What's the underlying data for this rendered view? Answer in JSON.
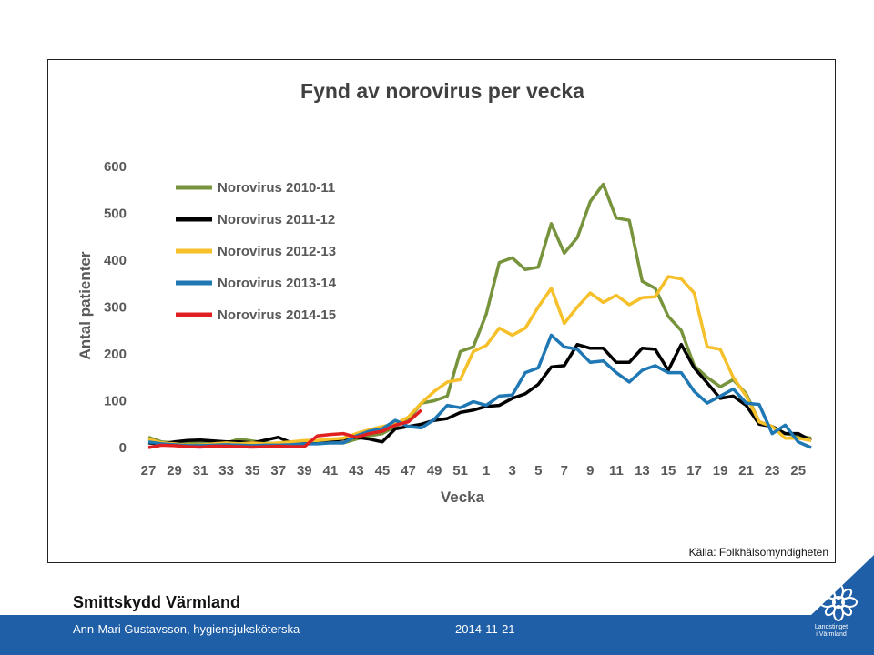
{
  "slide": {
    "org_title": "Smittskydd Värmland",
    "footer_author": "Ann-Mari Gustavsson, hygiensjuksköterska",
    "footer_date": "2014-11-21",
    "source": "Källa: Folkhälsomyndigheten",
    "logo_text_line1": "Landstinget",
    "logo_text_line2": "i Värmland",
    "logo_icon": "flower-logo-icon"
  },
  "colors": {
    "footer_bar": "#1f5fa7",
    "logo_triangle": "#1f5fa7"
  },
  "chart_data": {
    "type": "line",
    "title": "Fynd av norovirus per vecka",
    "xlabel": "Vecka",
    "ylabel": "Antal patienter",
    "ylim": [
      0,
      600
    ],
    "yticks": [
      0,
      100,
      200,
      300,
      400,
      500,
      600
    ],
    "grid": false,
    "legend_position": "top-left",
    "x_tick_labels": [
      "27",
      "29",
      "31",
      "33",
      "35",
      "37",
      "39",
      "41",
      "43",
      "45",
      "47",
      "49",
      "51",
      "1",
      "3",
      "5",
      "7",
      "9",
      "11",
      "13",
      "15",
      "17",
      "19",
      "21",
      "23",
      "25"
    ],
    "x": [
      "27",
      "28",
      "29",
      "30",
      "31",
      "32",
      "33",
      "34",
      "35",
      "36",
      "37",
      "38",
      "39",
      "40",
      "41",
      "42",
      "43",
      "44",
      "45",
      "46",
      "47",
      "48",
      "49",
      "50",
      "51",
      "52",
      "1",
      "2",
      "3",
      "4",
      "5",
      "6",
      "7",
      "8",
      "9",
      "10",
      "11",
      "12",
      "13",
      "14",
      "15",
      "16",
      "17",
      "18",
      "19",
      "20",
      "21",
      "22",
      "23",
      "24",
      "25",
      "26"
    ],
    "series": [
      {
        "name": "Norovirus 2010-11",
        "color": "#77933c",
        "values": [
          22,
          12,
          10,
          8,
          12,
          12,
          10,
          18,
          14,
          10,
          8,
          10,
          12,
          12,
          10,
          10,
          18,
          25,
          30,
          45,
          60,
          95,
          100,
          110,
          205,
          215,
          285,
          395,
          405,
          380,
          385,
          478,
          415,
          448,
          525,
          562,
          490,
          485,
          355,
          340,
          280,
          250,
          175,
          150,
          130,
          145,
          115,
          55,
          45,
          30,
          25,
          20
        ]
      },
      {
        "name": "Norovirus 2011-12",
        "color": "#000000",
        "values": [
          10,
          8,
          12,
          15,
          16,
          14,
          12,
          12,
          10,
          16,
          22,
          10,
          12,
          12,
          15,
          18,
          22,
          18,
          12,
          40,
          45,
          50,
          58,
          62,
          75,
          80,
          88,
          90,
          105,
          115,
          135,
          172,
          175,
          220,
          212,
          212,
          182,
          182,
          212,
          210,
          165,
          220,
          170,
          138,
          105,
          110,
          90,
          50,
          45,
          30,
          30,
          15
        ]
      },
      {
        "name": "Norovirus 2012-13",
        "color": "#f5c02a",
        "values": [
          18,
          10,
          8,
          5,
          5,
          8,
          10,
          8,
          10,
          8,
          10,
          12,
          15,
          15,
          18,
          20,
          30,
          38,
          45,
          50,
          65,
          95,
          120,
          140,
          145,
          205,
          218,
          255,
          240,
          255,
          300,
          340,
          265,
          300,
          330,
          310,
          325,
          305,
          320,
          322,
          365,
          360,
          330,
          215,
          210,
          150,
          110,
          55,
          45,
          20,
          20,
          15
        ]
      },
      {
        "name": "Norovirus 2013-14",
        "color": "#1f77b4",
        "values": [
          12,
          8,
          6,
          4,
          4,
          5,
          6,
          5,
          4,
          5,
          5,
          6,
          8,
          8,
          10,
          10,
          25,
          35,
          40,
          58,
          45,
          42,
          60,
          90,
          85,
          98,
          90,
          110,
          112,
          160,
          170,
          240,
          215,
          210,
          182,
          185,
          160,
          140,
          165,
          175,
          160,
          160,
          120,
          95,
          110,
          125,
          95,
          92,
          30,
          48,
          12,
          0
        ]
      },
      {
        "name": "Norovirus 2014-15",
        "color": "#e02020",
        "values": [
          0,
          5,
          4,
          2,
          1,
          3,
          3,
          2,
          1,
          2,
          3,
          2,
          2,
          25,
          28,
          30,
          22,
          30,
          35,
          48,
          55,
          80,
          null,
          null,
          null,
          null,
          null,
          null,
          null,
          null,
          null,
          null,
          null,
          null,
          null,
          null,
          null,
          null,
          null,
          null,
          null,
          null,
          null,
          null,
          null,
          null,
          null,
          null,
          null,
          null,
          null,
          null
        ]
      }
    ]
  }
}
